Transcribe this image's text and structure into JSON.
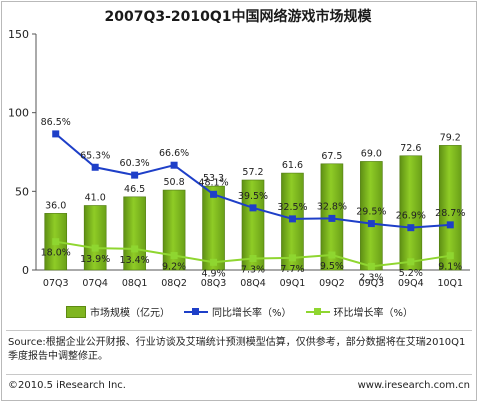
{
  "chart_data": {
    "type": "bar",
    "title": "2007Q3-2010Q1中国网络游戏市场规模",
    "categories": [
      "07Q3",
      "07Q4",
      "08Q1",
      "08Q2",
      "08Q3",
      "08Q4",
      "09Q1",
      "09Q2",
      "09Q3",
      "09Q4",
      "10Q1"
    ],
    "bar_series": {
      "name": "市场规模（亿元）",
      "values": [
        36.0,
        41.0,
        46.5,
        50.8,
        53.3,
        57.2,
        61.6,
        67.5,
        69.0,
        72.6,
        79.2
      ],
      "labels": [
        "36.0",
        "41.0",
        "46.5",
        "50.8",
        "53.3",
        "57.2",
        "61.6",
        "67.5",
        "69.0",
        "72.6",
        "79.2"
      ],
      "color": "#7fb520"
    },
    "line_series": [
      {
        "name": "同比增长率（%）",
        "values": [
          86.5,
          65.3,
          60.3,
          66.6,
          48.1,
          39.5,
          32.5,
          32.8,
          29.5,
          26.9,
          28.7
        ],
        "labels": [
          "86.5%",
          "65.3%",
          "60.3%",
          "66.6%",
          "48.1%",
          "39.5%",
          "32.5%",
          "32.8%",
          "29.5%",
          "26.9%",
          "28.7%"
        ],
        "color": "#1e3fc8",
        "marker": "square"
      },
      {
        "name": "环比增长率（%）",
        "values": [
          18.0,
          13.9,
          13.4,
          9.2,
          4.9,
          7.3,
          7.7,
          9.5,
          2.3,
          5.2,
          9.1
        ],
        "labels": [
          "18.0%",
          "13.9%",
          "13.4%",
          "9.2%",
          "4.9%",
          "7.3%",
          "7.7%",
          "9.5%",
          "2.3%",
          "5.2%",
          "9.1%"
        ],
        "color": "#8fd630",
        "marker": "square"
      }
    ],
    "y_axis": {
      "ylim": [
        0,
        150
      ],
      "ticks": [
        "0",
        "50",
        "100",
        "150"
      ]
    },
    "legend_position": "bottom",
    "grid": false
  },
  "legend": {
    "bar": "市场规模（亿元）",
    "line1": "同比增长率（%）",
    "line2": "环比增长率（%）"
  },
  "source_text": "Source:根据企业公开财报、行业访谈及艾瑞统计预测模型估算，仅供参考，部分数据将在艾瑞2010Q1季度报告中调整修正。",
  "footer": {
    "copyright": "©2010.5 iResearch Inc.",
    "url": "www.iresearch.com.cn"
  }
}
